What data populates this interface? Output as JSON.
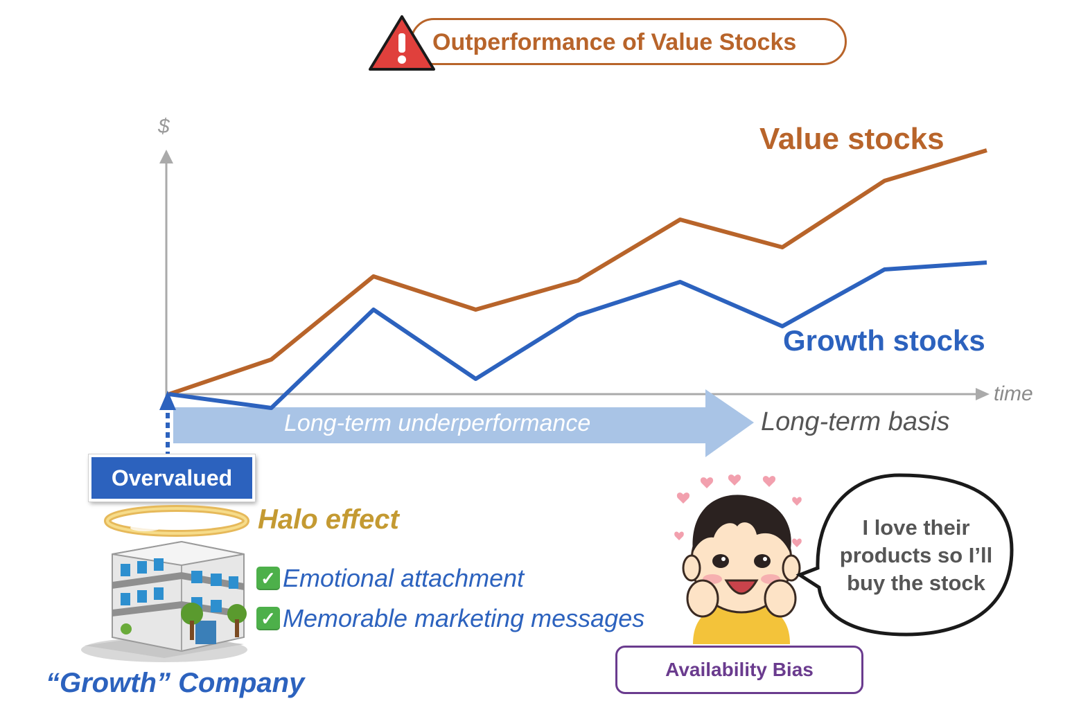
{
  "title": "Outperformance of Value Stocks",
  "warning_icon": "warning-triangle-icon",
  "chart_data": {
    "type": "line",
    "y_axis_label": "$",
    "x_axis_label": "time",
    "grid": false,
    "x": [
      0,
      1,
      2,
      3,
      4,
      5,
      6,
      7,
      8
    ],
    "series": [
      {
        "name": "Value stocks",
        "color": "#b8642a",
        "values": [
          0,
          50,
          170,
          122,
          164,
          252,
          212,
          308,
          352
        ]
      },
      {
        "name": "Growth stocks",
        "color": "#2c62be",
        "values": [
          0,
          -20,
          122,
          22,
          114,
          162,
          98,
          180,
          190
        ]
      }
    ],
    "ylim": [
      -60,
      360
    ]
  },
  "arrow_text": "Long-term underperformance",
  "basis_label": "Long-term basis",
  "overvalued_label": "Overvalued",
  "halo_label": "Halo effect",
  "checklist": [
    "Emotional attachment",
    "Memorable marketing messages"
  ],
  "check_icon": "✓",
  "company_label": "“Growth” Company",
  "speech_bubble": "I love their products so I’ll buy the stock",
  "bias_label": "Availability Bias",
  "colors": {
    "value": "#b8642a",
    "growth": "#2c62be",
    "halo": "#c49a32",
    "bias": "#6a3b8e",
    "arrow": "#a9c4e6"
  }
}
